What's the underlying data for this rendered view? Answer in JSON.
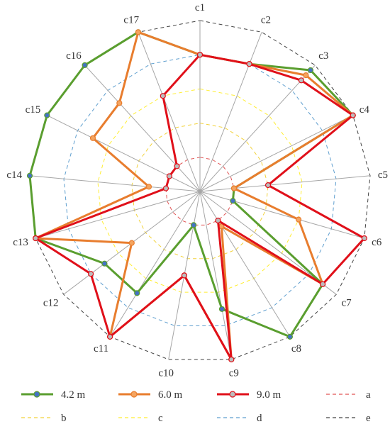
{
  "chart_data": {
    "type": "radar",
    "title": "",
    "categories": [
      "c1",
      "c2",
      "c3",
      "c4",
      "c5",
      "c6",
      "c7",
      "c8",
      "c9",
      "c10",
      "c11",
      "c12",
      "c13",
      "c14",
      "c15",
      "c16",
      "c17"
    ],
    "rmax": 5,
    "grid": true,
    "legend_position": "bottom",
    "series": [
      {
        "name": "4.2 m",
        "color": "#5a9e2f",
        "values": [
          4.0,
          4.0,
          4.8,
          5.0,
          1.0,
          1.0,
          4.5,
          5.0,
          3.5,
          1.0,
          3.5,
          3.5,
          5.0,
          5.0,
          5.0,
          5.0,
          5.0
        ]
      },
      {
        "name": "6.0 m",
        "color": "#e87d2e",
        "values": [
          4.0,
          4.0,
          4.6,
          5.0,
          1.0,
          3.0,
          4.5,
          1.2,
          5.0,
          2.5,
          5.0,
          2.5,
          5.0,
          1.5,
          3.5,
          3.5,
          5.0
        ]
      },
      {
        "name": "9.0 m",
        "color": "#e0101a",
        "values": [
          4.0,
          4.0,
          4.4,
          5.0,
          2.0,
          5.0,
          4.5,
          1.0,
          5.0,
          2.5,
          5.0,
          4.0,
          5.0,
          1.0,
          1.0,
          1.0,
          3.0
        ]
      }
    ],
    "rings": [
      {
        "name": "a",
        "value": 1,
        "color": "#e05555"
      },
      {
        "name": "b",
        "value": 2,
        "color": "#f2d23a"
      },
      {
        "name": "c",
        "value": 3,
        "color": "#ffee33"
      },
      {
        "name": "d",
        "value": 4,
        "color": "#5f9fcf"
      },
      {
        "name": "e",
        "value": 5,
        "color": "#444444"
      }
    ]
  }
}
